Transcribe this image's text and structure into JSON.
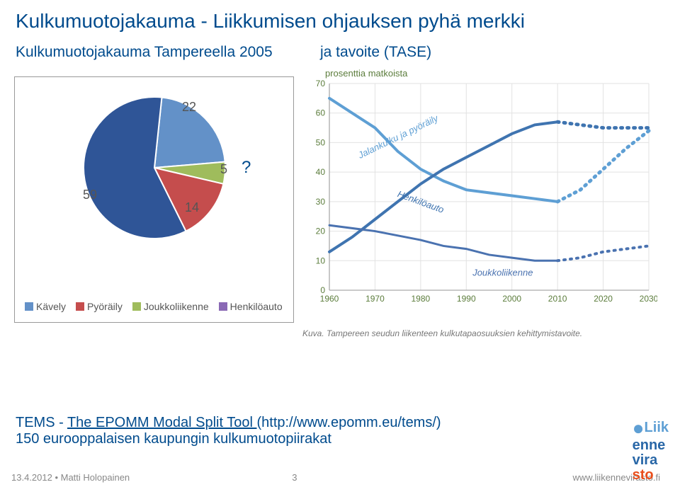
{
  "title": "Kulkumuotojakauma - Liikkumisen ohjauksen pyhä merkki",
  "subtitle_left": "Kulkumuotojakauma Tampereella 2005",
  "subtitle_right": "ja tavoite (TASE)",
  "pie_chart": {
    "type": "pie",
    "labels": [
      "22",
      "5",
      "14",
      "59"
    ],
    "values": [
      22,
      5,
      14,
      59
    ],
    "colors": [
      "#6391c8",
      "#9fbc5c",
      "#c54d4d",
      "#2f5597"
    ],
    "legend": [
      {
        "label": "Kävely",
        "color": "#6391c8"
      },
      {
        "label": "Pyöräily",
        "color": "#c54d4d"
      },
      {
        "label": "Joukkoliikenne",
        "color": "#9fbc5c"
      },
      {
        "label": "Henkilöauto",
        "color": "#8a69b5"
      }
    ],
    "question_mark": "?"
  },
  "line_chart": {
    "type": "line",
    "yaxis_title": "prosenttia matkoista",
    "y_ticks": [
      0,
      10,
      20,
      30,
      40,
      50,
      60,
      70
    ],
    "x_ticks": [
      1960,
      1970,
      1980,
      1990,
      2000,
      2010,
      2020,
      2030
    ],
    "grid_color": "#e2e2e2",
    "axis_color": "#aaaaaa",
    "series": [
      {
        "name": "Jalankulku ja pyöräily",
        "color": "#5e9fd4",
        "stroke_width": 4,
        "solid_until": 2010,
        "points": [
          [
            1960,
            65
          ],
          [
            1970,
            55
          ],
          [
            1975,
            47
          ],
          [
            1980,
            41
          ],
          [
            1985,
            37
          ],
          [
            1990,
            34
          ],
          [
            1995,
            33
          ],
          [
            2000,
            32
          ],
          [
            2005,
            31
          ],
          [
            2010,
            30
          ],
          [
            2015,
            34
          ],
          [
            2020,
            41
          ],
          [
            2025,
            48
          ],
          [
            2030,
            54
          ]
        ],
        "label_pos": {
          "x": 1975,
          "y": 52,
          "rot": -26
        }
      },
      {
        "name": "Henkilöauto",
        "color": "#3f74b0",
        "stroke_width": 4,
        "solid_until": 2010,
        "points": [
          [
            1960,
            13
          ],
          [
            1965,
            18
          ],
          [
            1970,
            24
          ],
          [
            1975,
            30
          ],
          [
            1980,
            36
          ],
          [
            1985,
            41
          ],
          [
            1990,
            45
          ],
          [
            1995,
            49
          ],
          [
            2000,
            53
          ],
          [
            2005,
            56
          ],
          [
            2010,
            57
          ],
          [
            2015,
            56
          ],
          [
            2020,
            55
          ],
          [
            2025,
            55
          ],
          [
            2030,
            55
          ]
        ],
        "label_pos": {
          "x": 1980,
          "y": 30,
          "rot": 20
        }
      },
      {
        "name": "Joukkoliikenne",
        "color": "#4a72b0",
        "stroke_width": 3,
        "solid_until": 2010,
        "points": [
          [
            1960,
            22
          ],
          [
            1970,
            20
          ],
          [
            1980,
            17
          ],
          [
            1985,
            15
          ],
          [
            1990,
            14
          ],
          [
            1995,
            12
          ],
          [
            2000,
            11
          ],
          [
            2005,
            10
          ],
          [
            2010,
            10
          ],
          [
            2015,
            11
          ],
          [
            2020,
            13
          ],
          [
            2025,
            14
          ],
          [
            2030,
            15
          ]
        ],
        "label_pos": {
          "x": 1998,
          "y": 6,
          "rot": 0
        }
      }
    ],
    "caption": "Kuva. Tampereen seudun liikenteen kulkutapaosuuksien kehittymistavoite."
  },
  "bottom_text": {
    "line1_prefix": "TEMS - ",
    "line1_link": "The EPOMM Modal Split Tool ",
    "line1_suffix": "(http://www.epomm.eu/tems/)",
    "line2": "150 eurooppalaisen kaupungin kulkumuotopiirakat"
  },
  "footer": {
    "left": "13.4.2012 • Matti Holopainen",
    "page": "3",
    "url": "www.liikennevirasto.fi"
  },
  "logo": {
    "l1": "Liik",
    "l2": "enne",
    "l3": "vira",
    "l4": "sto"
  }
}
